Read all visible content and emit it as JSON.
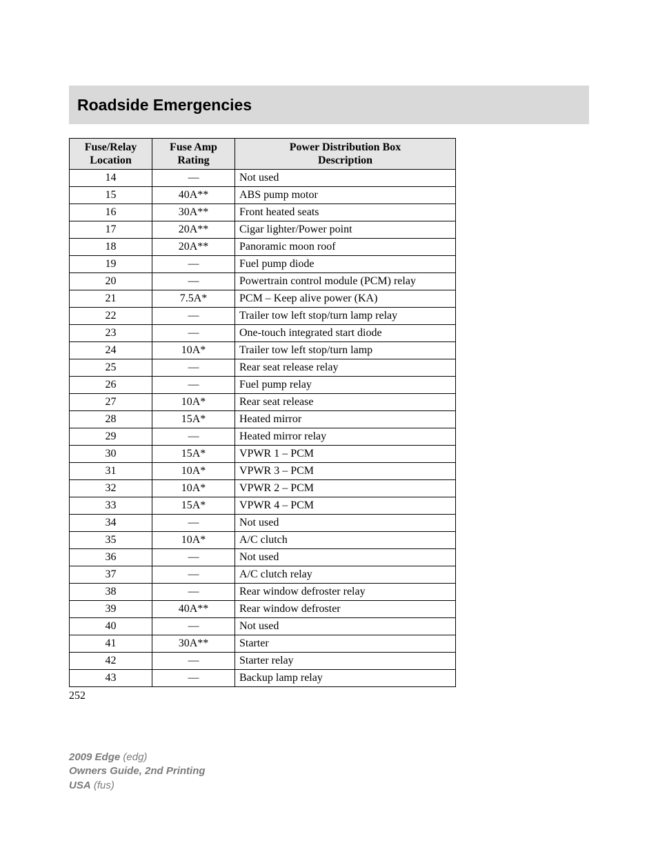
{
  "header": {
    "title": "Roadside Emergencies"
  },
  "table": {
    "columns": [
      {
        "l1": "Fuse/Relay",
        "l2": "Location"
      },
      {
        "l1": "Fuse Amp",
        "l2": "Rating"
      },
      {
        "l1": "Power Distribution Box",
        "l2": "Description"
      }
    ],
    "rows": [
      {
        "loc": "14",
        "amp": "—",
        "desc": "Not used"
      },
      {
        "loc": "15",
        "amp": "40A**",
        "desc": "ABS pump motor"
      },
      {
        "loc": "16",
        "amp": "30A**",
        "desc": "Front heated seats"
      },
      {
        "loc": "17",
        "amp": "20A**",
        "desc": "Cigar lighter/Power point"
      },
      {
        "loc": "18",
        "amp": "20A**",
        "desc": "Panoramic moon roof"
      },
      {
        "loc": "19",
        "amp": "—",
        "desc": "Fuel pump diode"
      },
      {
        "loc": "20",
        "amp": "—",
        "desc": "Powertrain control module (PCM) relay"
      },
      {
        "loc": "21",
        "amp": "7.5A*",
        "desc": "PCM – Keep alive power (KA)"
      },
      {
        "loc": "22",
        "amp": "—",
        "desc": "Trailer tow left stop/turn lamp relay"
      },
      {
        "loc": "23",
        "amp": "—",
        "desc": "One-touch integrated start diode"
      },
      {
        "loc": "24",
        "amp": "10A*",
        "desc": "Trailer tow left stop/turn lamp"
      },
      {
        "loc": "25",
        "amp": "—",
        "desc": "Rear seat release relay"
      },
      {
        "loc": "26",
        "amp": "—",
        "desc": "Fuel pump relay"
      },
      {
        "loc": "27",
        "amp": "10A*",
        "desc": "Rear seat release"
      },
      {
        "loc": "28",
        "amp": "15A*",
        "desc": "Heated mirror"
      },
      {
        "loc": "29",
        "amp": "—",
        "desc": "Heated mirror relay"
      },
      {
        "loc": "30",
        "amp": "15A*",
        "desc": "VPWR 1 – PCM"
      },
      {
        "loc": "31",
        "amp": "10A*",
        "desc": "VPWR 3 – PCM"
      },
      {
        "loc": "32",
        "amp": "10A*",
        "desc": "VPWR 2 – PCM"
      },
      {
        "loc": "33",
        "amp": "15A*",
        "desc": "VPWR 4 – PCM"
      },
      {
        "loc": "34",
        "amp": "—",
        "desc": "Not used"
      },
      {
        "loc": "35",
        "amp": "10A*",
        "desc": "A/C clutch"
      },
      {
        "loc": "36",
        "amp": "—",
        "desc": "Not used"
      },
      {
        "loc": "37",
        "amp": "—",
        "desc": "A/C clutch relay"
      },
      {
        "loc": "38",
        "amp": "—",
        "desc": "Rear window defroster relay"
      },
      {
        "loc": "39",
        "amp": "40A**",
        "desc": "Rear window defroster"
      },
      {
        "loc": "40",
        "amp": "—",
        "desc": "Not used"
      },
      {
        "loc": "41",
        "amp": "30A**",
        "desc": "Starter"
      },
      {
        "loc": "42",
        "amp": "—",
        "desc": "Starter relay"
      },
      {
        "loc": "43",
        "amp": "—",
        "desc": "Backup lamp relay"
      }
    ]
  },
  "page_number": "252",
  "footer": {
    "year": "2009",
    "model": "Edge",
    "code": "(edg)",
    "guide": "Owners Guide, 2nd Printing",
    "region": "USA",
    "region_code": "(fus)"
  },
  "style": {
    "header_bg": "#d9d9d9",
    "th_bg": "#e5e5e5",
    "border_color": "#000000",
    "footer_color": "#7a7a7a"
  }
}
